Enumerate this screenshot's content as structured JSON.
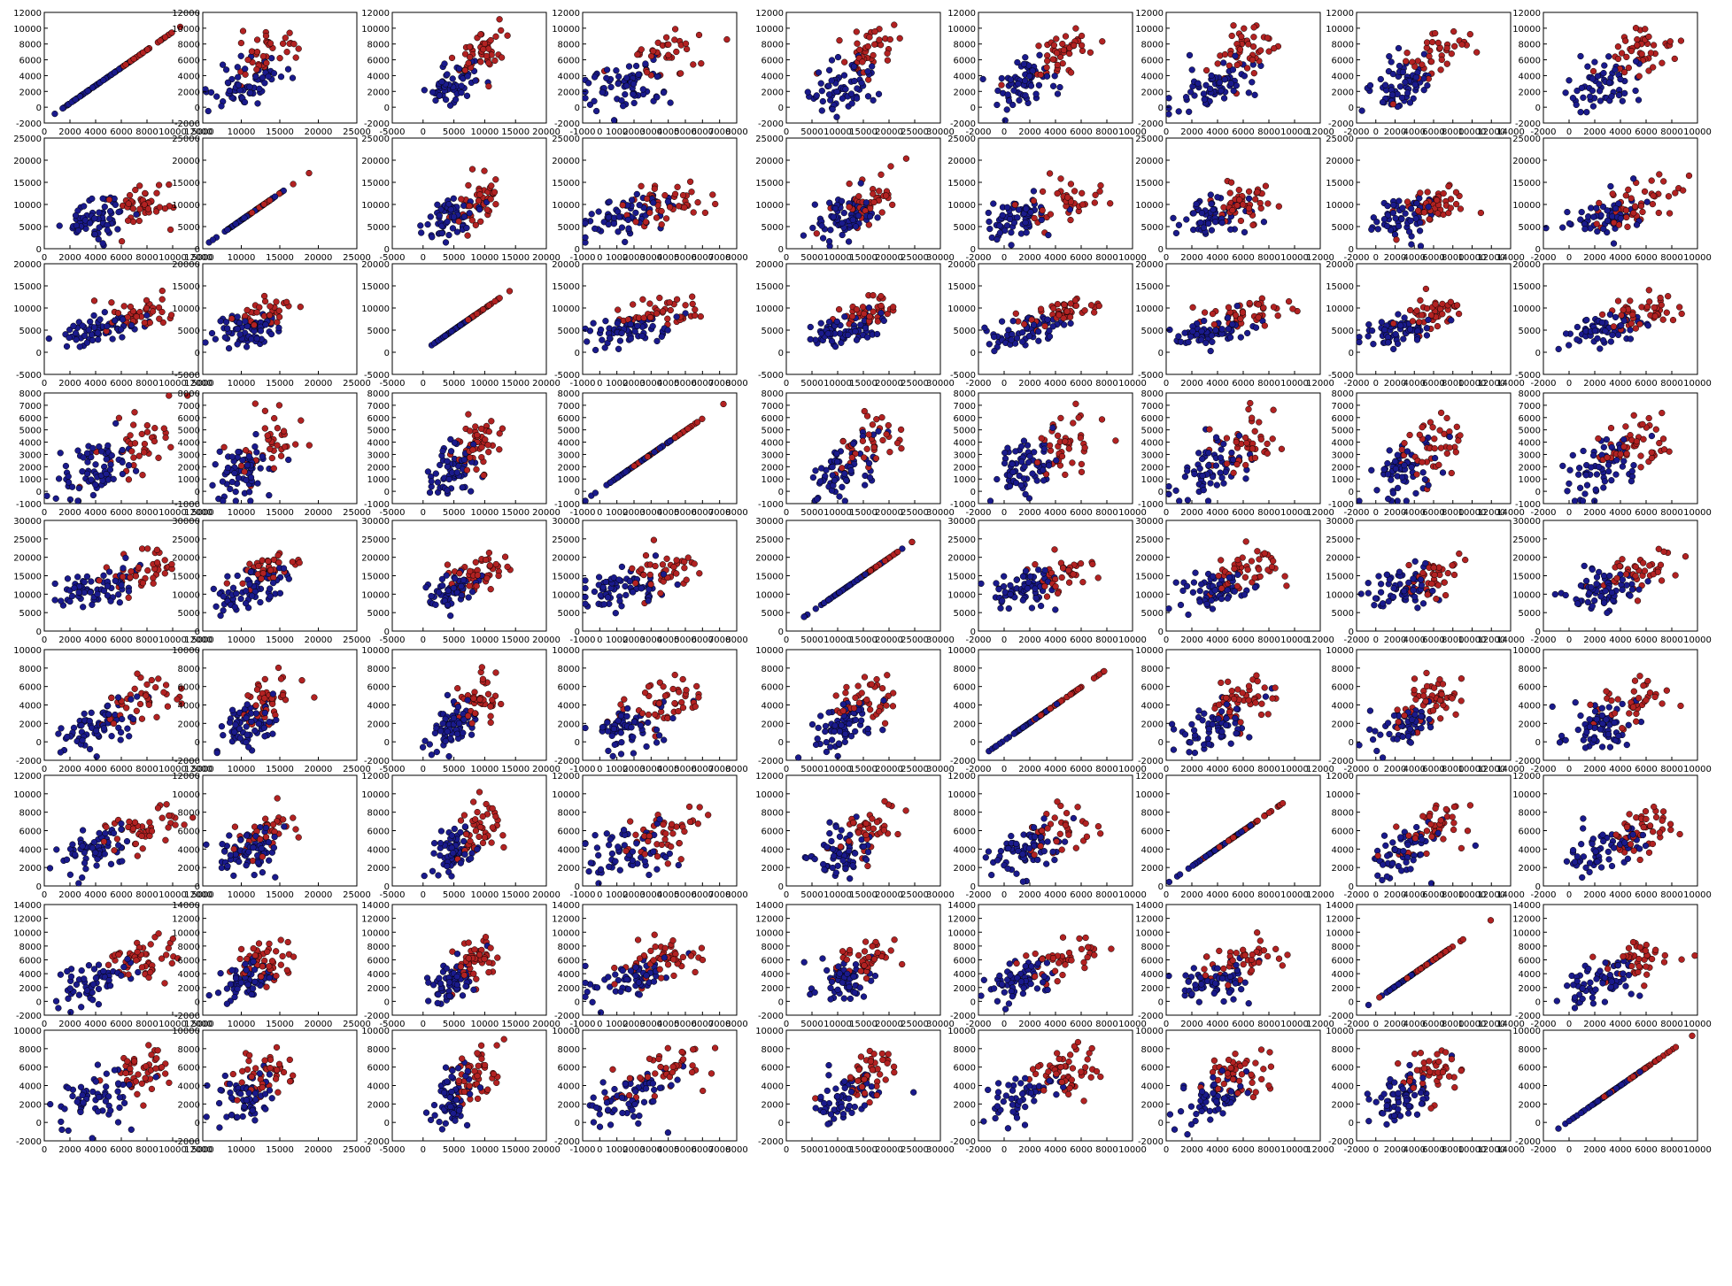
{
  "figure": {
    "type": "scatter-matrix",
    "rows": 9,
    "cols": 9,
    "point_colors": {
      "class_a": "#1a1a8c",
      "class_b": "#b22222",
      "edge": "#000000",
      "axis": "#000000"
    },
    "x_tick_labels": [
      [
        "0",
        "2000",
        "4000",
        "6000",
        "8000",
        "10000",
        "12000"
      ],
      [
        "5000",
        "10000",
        "15000",
        "20000",
        "25000"
      ],
      [
        "-5000",
        "0",
        "5000",
        "10000",
        "15000",
        "20000"
      ],
      [
        "-1000",
        "0",
        "1000",
        "2000",
        "3000",
        "4000",
        "5000",
        "6000",
        "7000",
        "8000"
      ],
      [
        "0",
        "5000",
        "10000",
        "15000",
        "20000",
        "25000",
        "30000"
      ],
      [
        "-2000",
        "0",
        "2000",
        "4000",
        "6000",
        "8000",
        "10000"
      ],
      [
        "0",
        "2000",
        "4000",
        "6000",
        "8000",
        "10000",
        "12000"
      ],
      [
        "-2000",
        "0",
        "2000",
        "4000",
        "6000",
        "8000",
        "10000",
        "12000",
        "14000"
      ],
      [
        "-2000",
        "0",
        "2000",
        "4000",
        "6000",
        "8000",
        "10000"
      ]
    ],
    "y_tick_labels": [
      [
        "-2000",
        "0",
        "2000",
        "4000",
        "6000",
        "8000",
        "10000",
        "12000"
      ],
      [
        "0",
        "5000",
        "10000",
        "15000",
        "20000",
        "25000"
      ],
      [
        "-5000",
        "0",
        "5000",
        "10000",
        "15000",
        "20000"
      ],
      [
        "-1000",
        "0",
        "1000",
        "2000",
        "3000",
        "4000",
        "5000",
        "6000",
        "7000",
        "8000"
      ],
      [
        "0",
        "5000",
        "10000",
        "15000",
        "20000",
        "25000",
        "30000"
      ],
      [
        "-2000",
        "0",
        "2000",
        "4000",
        "6000",
        "8000",
        "10000"
      ],
      [
        "0",
        "2000",
        "4000",
        "6000",
        "8000",
        "10000",
        "12000"
      ],
      [
        "-2000",
        "0",
        "2000",
        "4000",
        "6000",
        "8000",
        "10000",
        "12000",
        "14000"
      ],
      [
        "-2000",
        "0",
        "2000",
        "4000",
        "6000",
        "8000",
        "10000"
      ]
    ]
  },
  "chart_data": {
    "type": "scatter",
    "variables": 9,
    "xlim": [
      [
        -2000,
        12000
      ],
      [
        0,
        25000
      ],
      [
        -5000,
        20000
      ],
      [
        -1000,
        8000
      ],
      [
        0,
        30000
      ],
      [
        -2000,
        10000
      ],
      [
        0,
        12000
      ],
      [
        -2000,
        14000
      ],
      [
        -2000,
        10000
      ]
    ],
    "ylim": [
      [
        -2000,
        12000
      ],
      [
        0,
        25000
      ],
      [
        -5000,
        20000
      ],
      [
        -1000,
        8000
      ],
      [
        0,
        30000
      ],
      [
        -2000,
        10000
      ],
      [
        0,
        12000
      ],
      [
        -2000,
        14000
      ],
      [
        -2000,
        10000
      ]
    ],
    "series": [
      {
        "color": "#1a1a8c"
      },
      {
        "color": "#b22222"
      }
    ],
    "grid": false,
    "legend": "none"
  }
}
